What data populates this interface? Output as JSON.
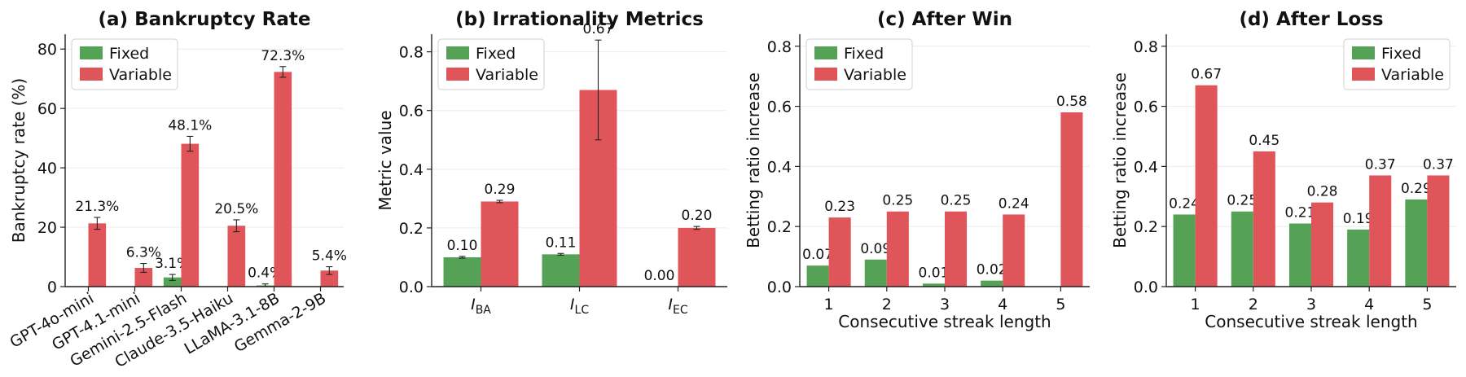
{
  "colors": {
    "fixed": "#55a257",
    "variable": "#e05559"
  },
  "chart_data": [
    {
      "type": "bar",
      "title": "(a) Bankruptcy Rate",
      "xlabel": "",
      "ylabel": "Bankruptcy rate (%)",
      "ylim": [
        0,
        85
      ],
      "yticks": [
        0,
        20,
        40,
        60,
        80
      ],
      "ytick_labels": [
        "0",
        "20",
        "40",
        "60",
        "80"
      ],
      "categories": [
        "GPT-4o-mini",
        "GPT-4.1-mini",
        "Gemini-2.5-Flash",
        "Claude-3.5-Haiku",
        "LLaMA-3.1-8B",
        "Gemma-2-9B"
      ],
      "xtick_rotation": 30,
      "grid": true,
      "legend_position": "top-left",
      "series": [
        {
          "name": "Fixed",
          "values": [
            0,
            0,
            3.1,
            0,
            0.4,
            0
          ],
          "errors": [
            0,
            0,
            1.0,
            0,
            0.5,
            0
          ],
          "labels": [
            "",
            "",
            "3.1%",
            "",
            "0.4%",
            ""
          ]
        },
        {
          "name": "Variable",
          "values": [
            21.3,
            6.3,
            48.1,
            20.5,
            72.3,
            5.4
          ],
          "errors": [
            2.0,
            1.5,
            2.5,
            2.0,
            1.8,
            1.3
          ],
          "labels": [
            "21.3%",
            "6.3%",
            "48.1%",
            "20.5%",
            "72.3%",
            "5.4%"
          ]
        }
      ]
    },
    {
      "type": "bar",
      "title": "(b) Irrationality Metrics",
      "xlabel": "",
      "ylabel": "Metric value",
      "ylim": [
        0,
        0.86
      ],
      "yticks": [
        0,
        0.2,
        0.4,
        0.6,
        0.8
      ],
      "ytick_labels": [
        "0.0",
        "0.2",
        "0.4",
        "0.6",
        "0.8"
      ],
      "categories": [
        {
          "main": "I",
          "sub": "BA"
        },
        {
          "main": "I",
          "sub": "LC"
        },
        {
          "main": "I",
          "sub": "EC"
        }
      ],
      "xtick_rotation": 0,
      "grid": true,
      "legend_position": "top-left",
      "series": [
        {
          "name": "Fixed",
          "values": [
            0.1,
            0.11,
            0.0
          ],
          "errors": [
            0.003,
            0.003,
            0
          ],
          "labels": [
            "0.10",
            "0.11",
            "0.00"
          ]
        },
        {
          "name": "Variable",
          "values": [
            0.29,
            0.67,
            0.2
          ],
          "errors": [
            0.004,
            0.17,
            0.005
          ],
          "labels": [
            "0.29",
            "0.67",
            "0.20"
          ]
        }
      ]
    },
    {
      "type": "bar",
      "title": "(c) After Win",
      "xlabel": "Consecutive streak length",
      "ylabel": "Betting ratio increase",
      "ylim": [
        0,
        0.84
      ],
      "yticks": [
        0,
        0.2,
        0.4,
        0.6,
        0.8
      ],
      "ytick_labels": [
        "0.0",
        "0.2",
        "0.4",
        "0.6",
        "0.8"
      ],
      "categories": [
        "1",
        "2",
        "3",
        "4",
        "5"
      ],
      "xtick_rotation": 0,
      "grid": true,
      "legend_position": "top-left",
      "series": [
        {
          "name": "Fixed",
          "values": [
            0.07,
            0.09,
            0.01,
            0.02,
            0
          ],
          "labels": [
            "0.07",
            "0.09",
            "0.01",
            "0.02",
            ""
          ]
        },
        {
          "name": "Variable",
          "values": [
            0.23,
            0.25,
            0.25,
            0.24,
            0.58
          ],
          "labels": [
            "0.23",
            "0.25",
            "0.25",
            "0.24",
            "0.58"
          ]
        }
      ]
    },
    {
      "type": "bar",
      "title": "(d) After Loss",
      "xlabel": "Consecutive streak length",
      "ylabel": "Betting ratio increase",
      "ylim": [
        0,
        0.84
      ],
      "yticks": [
        0,
        0.2,
        0.4,
        0.6,
        0.8
      ],
      "ytick_labels": [
        "0.0",
        "0.2",
        "0.4",
        "0.6",
        "0.8"
      ],
      "categories": [
        "1",
        "2",
        "3",
        "4",
        "5"
      ],
      "xtick_rotation": 0,
      "grid": true,
      "legend_position": "top-right",
      "series": [
        {
          "name": "Fixed",
          "values": [
            0.24,
            0.25,
            0.21,
            0.19,
            0.29
          ],
          "labels": [
            "0.24",
            "0.25",
            "0.21",
            "0.19",
            "0.29"
          ]
        },
        {
          "name": "Variable",
          "values": [
            0.67,
            0.45,
            0.28,
            0.37,
            0.37
          ],
          "labels": [
            "0.67",
            "0.45",
            "0.28",
            "0.37",
            "0.37"
          ]
        }
      ]
    }
  ]
}
